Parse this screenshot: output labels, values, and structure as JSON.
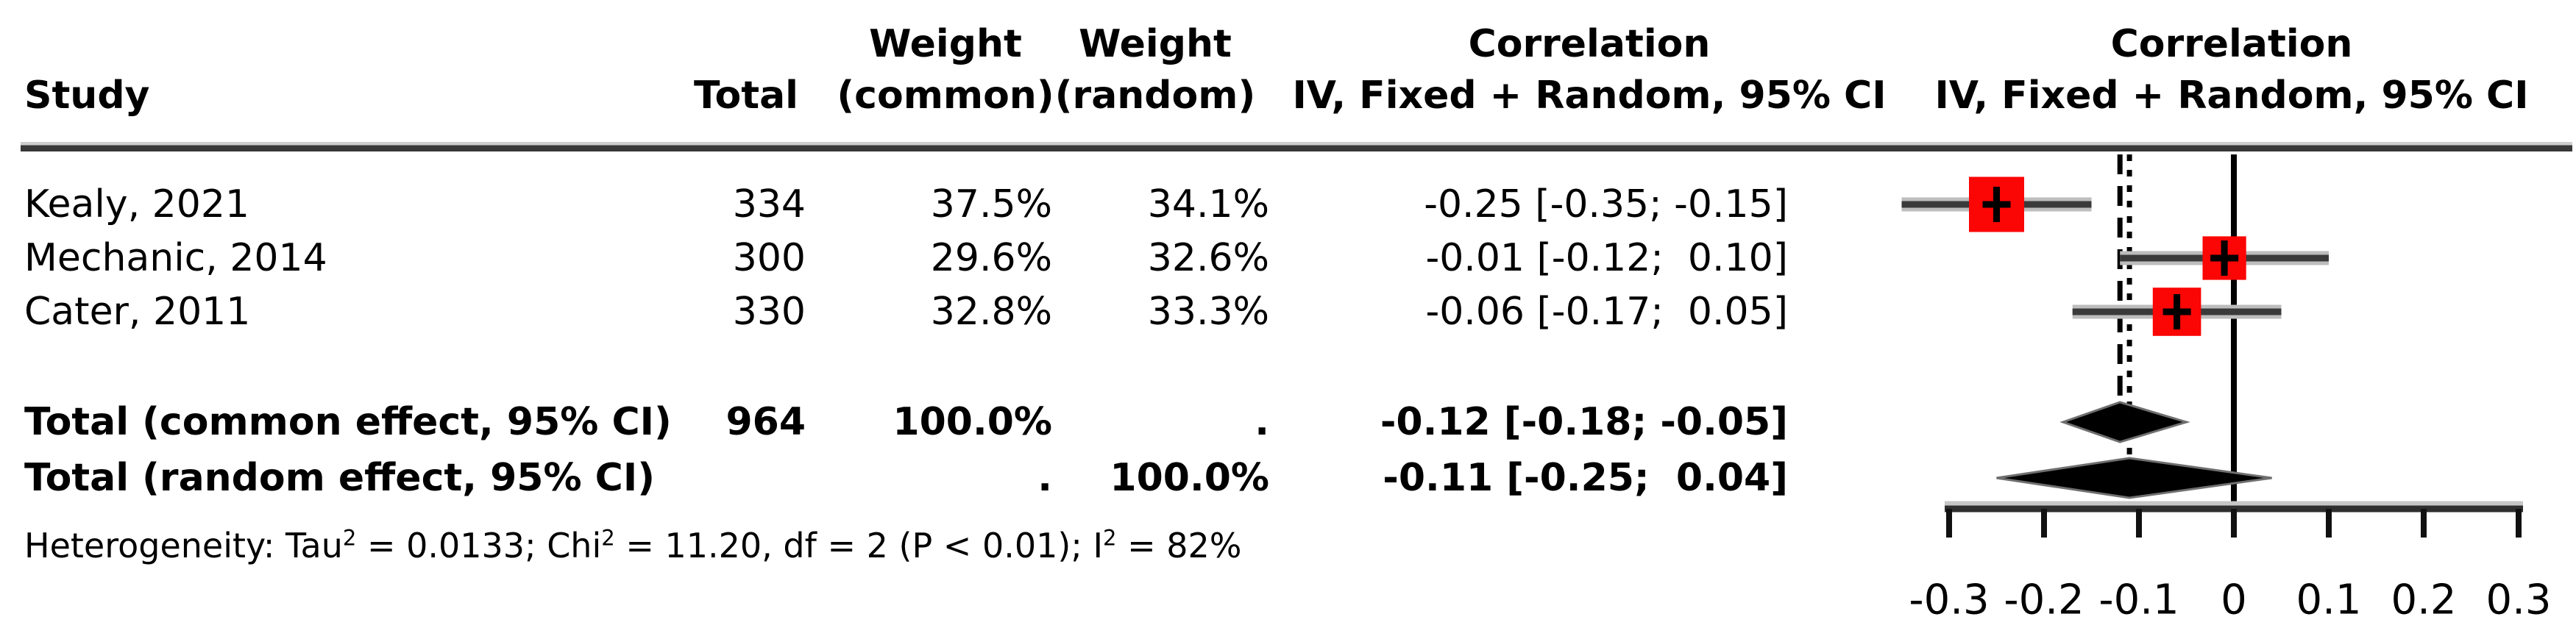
{
  "header": {
    "study": "Study",
    "total": "Total",
    "weight_common_line1": "Weight",
    "weight_common_line2": "(common)",
    "weight_random_line1": "Weight",
    "weight_random_line2": "(random)",
    "corr_text_line1": "Correlation",
    "corr_text_line2": "IV, Fixed + Random, 95% CI",
    "corr_plot_line1": "Correlation",
    "corr_plot_line2": "IV, Fixed + Random, 95% CI"
  },
  "rows": [
    {
      "study": "Kealy, 2021",
      "total": "334",
      "weight_common": "37.5%",
      "weight_random": "34.1%",
      "ci_text": "-0.25 [-0.35; -0.15]"
    },
    {
      "study": "Mechanic, 2014",
      "total": "300",
      "weight_common": "29.6%",
      "weight_random": "32.6%",
      "ci_text": "-0.01 [-0.12;  0.10]"
    },
    {
      "study": "Cater, 2011",
      "total": "330",
      "weight_common": "32.8%",
      "weight_random": "33.3%",
      "ci_text": "-0.06 [-0.17;  0.05]"
    }
  ],
  "totals": [
    {
      "label": "Total (common effect, 95% CI)",
      "total": "964",
      "weight_common": "100.0%",
      "weight_random": ".",
      "ci_text": "-0.12 [-0.18; -0.05]"
    },
    {
      "label": "Total (random effect, 95% CI)",
      "total": "",
      "weight_common": ".",
      "weight_random": "100.0%",
      "ci_text": "-0.11 [-0.25;  0.04]"
    }
  ],
  "heterogeneity": {
    "p1": "Heterogeneity: Tau",
    "s1": "2",
    "p2": " = 0.0133; Chi",
    "s2": "2",
    "p3": " = 11.20, df = 2 (P < 0.01); I",
    "s3": "2",
    "p4": " = 82%"
  },
  "chart_data": {
    "type": "forest",
    "effect_measure": "Correlation",
    "model": "IV, Fixed + Random, 95% CI",
    "marker_color": "#fb0505",
    "diamond_color": "#000000",
    "axis": {
      "range": [
        -0.35,
        0.3
      ],
      "zero_line": 0,
      "ticks": [
        {
          "label": "-0.3",
          "value": -0.3
        },
        {
          "label": "-0.2",
          "value": -0.2
        },
        {
          "label": "-0.1",
          "value": -0.1
        },
        {
          "label": "0",
          "value": 0
        },
        {
          "label": "0.1",
          "value": 0.1
        },
        {
          "label": "0.2",
          "value": 0.2
        },
        {
          "label": "0.3",
          "value": 0.3
        }
      ]
    },
    "studies": [
      {
        "name": "Kealy, 2021",
        "estimate": -0.25,
        "ci_lower": -0.35,
        "ci_upper": -0.15,
        "weight_common_pct": 37.5,
        "weight_random_pct": 34.1
      },
      {
        "name": "Mechanic, 2014",
        "estimate": -0.01,
        "ci_lower": -0.12,
        "ci_upper": 0.1,
        "weight_common_pct": 29.6,
        "weight_random_pct": 32.6
      },
      {
        "name": "Cater, 2011",
        "estimate": -0.06,
        "ci_lower": -0.17,
        "ci_upper": 0.05,
        "weight_common_pct": 32.8,
        "weight_random_pct": 33.3
      }
    ],
    "diamonds": [
      {
        "name": "Total (common effect, 95% CI)",
        "estimate": -0.12,
        "ci_lower": -0.18,
        "ci_upper": -0.05
      },
      {
        "name": "Total (random effect, 95% CI)",
        "estimate": -0.11,
        "ci_lower": -0.25,
        "ci_upper": 0.04
      }
    ],
    "ref_lines": [
      {
        "value": -0.12,
        "style": "dashed",
        "label": "common effect"
      },
      {
        "value": -0.11,
        "style": "dotted",
        "label": "random effect"
      }
    ]
  }
}
